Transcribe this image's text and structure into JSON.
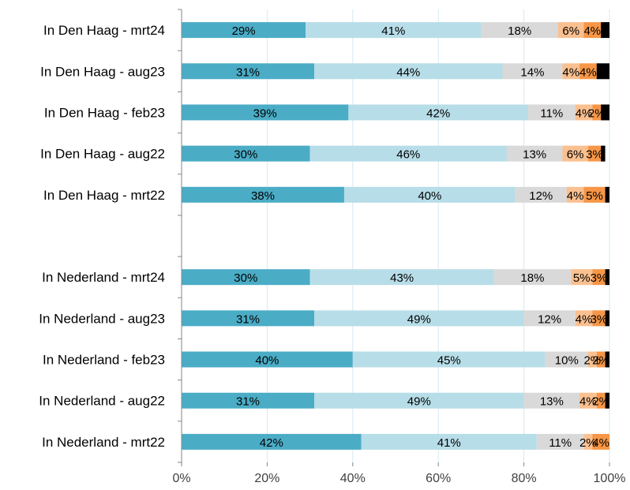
{
  "chart_data": {
    "type": "bar",
    "orientation": "horizontal",
    "stacked": true,
    "categories": [
      "In Den Haag - mrt24",
      "In Den Haag - aug23",
      "In Den Haag - feb23",
      "In Den Haag - aug22",
      "In Den Haag - mrt22",
      "",
      "In Nederland - mrt24",
      "In Nederland - aug23",
      "In Nederland - feb23",
      "In Nederland - aug22",
      "In Nederland - mrt22"
    ],
    "series": [
      {
        "color": "#4bacc6",
        "values": [
          29,
          31,
          39,
          30,
          38,
          null,
          30,
          31,
          40,
          31,
          42
        ]
      },
      {
        "color": "#b7dde8",
        "values": [
          41,
          44,
          42,
          46,
          40,
          null,
          43,
          49,
          45,
          49,
          41
        ]
      },
      {
        "color": "#d9d9d9",
        "values": [
          18,
          14,
          11,
          13,
          12,
          null,
          18,
          12,
          10,
          13,
          11
        ]
      },
      {
        "color": "#fac090",
        "values": [
          6,
          4,
          4,
          6,
          4,
          null,
          5,
          4,
          2,
          4,
          2
        ]
      },
      {
        "color": "#f79646",
        "values": [
          4,
          4,
          2,
          3,
          5,
          null,
          3,
          3,
          2,
          2,
          4
        ]
      },
      {
        "color": "#000000",
        "values": [
          2,
          3,
          2,
          1,
          1,
          null,
          1,
          1,
          1,
          1,
          0
        ]
      }
    ],
    "labels_visible": [
      [
        "29%",
        "41%",
        "18%",
        "6%",
        "4%",
        ""
      ],
      [
        "31%",
        "44%",
        "14%",
        "4%",
        "4%",
        ""
      ],
      [
        "39%",
        "42%",
        "11%",
        "4%",
        "2%",
        ""
      ],
      [
        "30%",
        "46%",
        "13%",
        "6%",
        "3%",
        ""
      ],
      [
        "38%",
        "40%",
        "12%",
        "4%",
        "5%",
        ""
      ],
      [
        "",
        "",
        "",
        "",
        "",
        ""
      ],
      [
        "30%",
        "43%",
        "18%",
        "5%",
        "3%",
        ""
      ],
      [
        "31%",
        "49%",
        "12%",
        "4%",
        "3%",
        ""
      ],
      [
        "40%",
        "45%",
        "10%",
        "2%",
        "2%",
        ""
      ],
      [
        "31%",
        "49%",
        "13%",
        "4%",
        "2%",
        ""
      ],
      [
        "42%",
        "41%",
        "11%",
        "2%",
        "4%",
        ""
      ]
    ],
    "xlim": [
      0,
      100
    ],
    "x_ticks": [
      "0%",
      "20%",
      "40%",
      "60%",
      "80%",
      "100%"
    ],
    "gridlines": true,
    "title": "",
    "xlabel": "",
    "ylabel": "",
    "legend": "none"
  }
}
